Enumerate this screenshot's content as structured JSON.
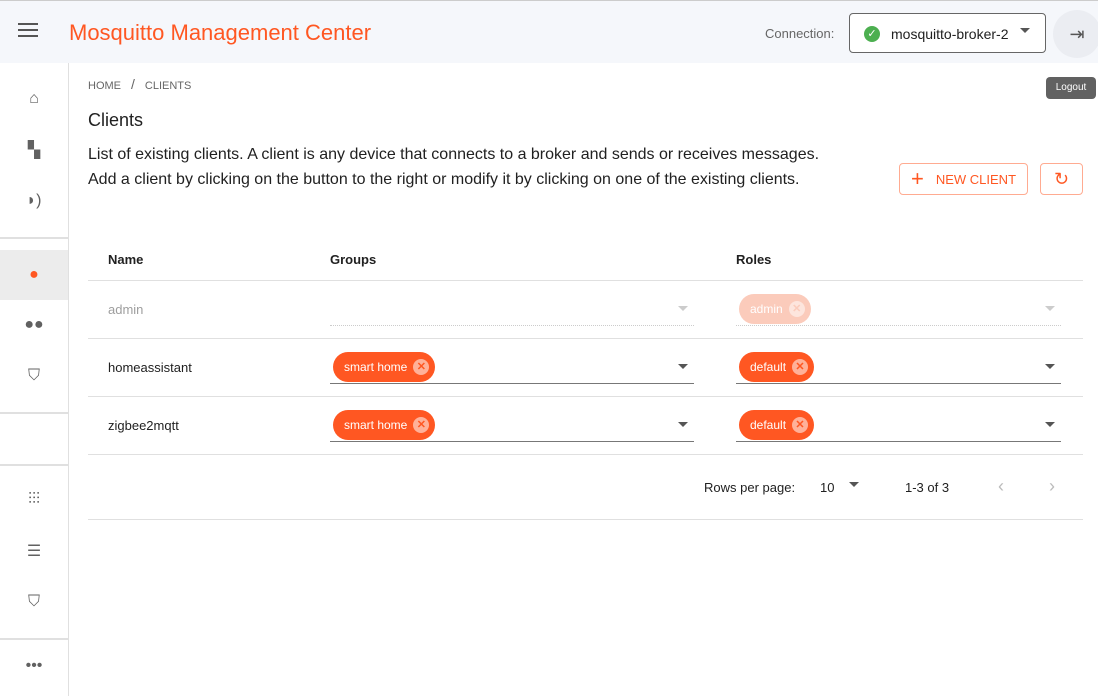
{
  "header": {
    "title": "Mosquitto Management Center",
    "connection_label": "Connection:",
    "connection_value": "mosquitto-broker-2",
    "logout_tooltip": "Logout"
  },
  "sidebar": {
    "items": [
      {
        "icon": "home-icon"
      },
      {
        "icon": "cluster-icon"
      },
      {
        "icon": "record-voice-icon"
      },
      {
        "icon": "person-icon",
        "selected": true
      },
      {
        "icon": "group-icon"
      },
      {
        "icon": "role-shield-search-icon"
      },
      {
        "icon": "tune-icon"
      },
      {
        "icon": "storage-icon"
      },
      {
        "icon": "verified-user-icon"
      },
      {
        "icon": "more-icon"
      }
    ]
  },
  "breadcrumb": {
    "home": "HOME",
    "current": "CLIENTS"
  },
  "page": {
    "title": "Clients",
    "description": "List of existing clients. A client is any device that connects to a broker and sends or receives messages. Add a client by clicking on the button to the right or modify it by clicking on one of the existing clients.",
    "new_client": "NEW CLIENT"
  },
  "table": {
    "headers": [
      "Name",
      "Groups",
      "Roles"
    ],
    "rows": [
      {
        "name": "admin",
        "groups": [],
        "roles": [
          "admin"
        ],
        "disabled": true
      },
      {
        "name": "homeassistant",
        "groups": [
          "smart home"
        ],
        "roles": [
          "default"
        ]
      },
      {
        "name": "zigbee2mqtt",
        "groups": [
          "smart home"
        ],
        "roles": [
          "default"
        ]
      }
    ]
  },
  "pagination": {
    "rows_per_page_label": "Rows per page:",
    "rows_per_page": "10",
    "range": "1-3 of 3"
  },
  "colors": {
    "accent": "#ff5722",
    "success": "#4caf50"
  }
}
